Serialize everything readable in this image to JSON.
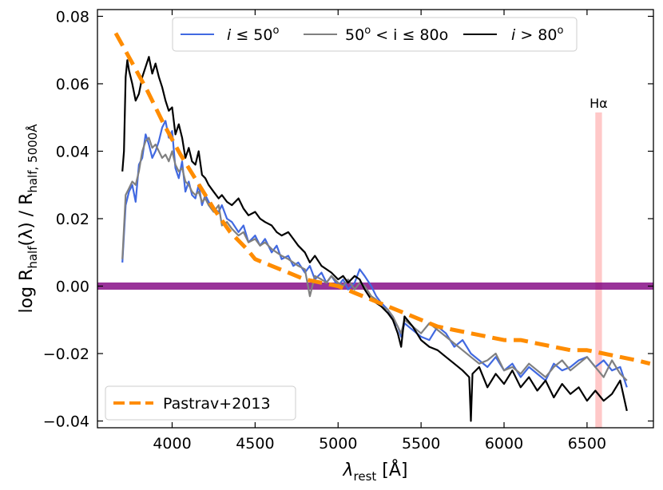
{
  "chart_data": {
    "type": "line",
    "xlabel_symbol": "λ",
    "xlabel_sub": "rest",
    "xlabel_unit": " [Å]",
    "ylabel_prefix": "log  R",
    "ylabel_sub1": "half",
    "ylabel_mid": "(λ) / R",
    "ylabel_sub2": "half, 5000Å",
    "xlim": [
      3550,
      6900
    ],
    "ylim": [
      -0.042,
      0.082
    ],
    "xticks": [
      4000,
      4500,
      5000,
      5500,
      6000,
      6500
    ],
    "xtick_labels": [
      "4000",
      "4500",
      "5000",
      "5500",
      "6000",
      "6500"
    ],
    "yticks": [
      -0.04,
      -0.02,
      0.0,
      0.02,
      0.04,
      0.06,
      0.08
    ],
    "ytick_labels": [
      "−0.04",
      "−0.02",
      "0.00",
      "0.02",
      "0.04",
      "0.06",
      "0.08"
    ],
    "legend_top": [
      {
        "series": "low_inclination",
        "prefix": "i",
        "rel": " ≤ 50",
        "suffix": "o"
      },
      {
        "series": "mid_inclination",
        "prefix": "50",
        "rel": "o",
        "suffix": " < i ≤ 80o"
      },
      {
        "series": "high_inclination",
        "prefix": "i",
        "rel": " > 80",
        "suffix": "o"
      }
    ],
    "legend_bottom_label": "Pastrav+2013",
    "halpha_label": "Hα",
    "halpha_band": [
      6550,
      6590
    ],
    "zero_line": 0.0,
    "colors": {
      "low": "#4169e1",
      "mid": "#808080",
      "high": "#000000",
      "model": "#ff8c00",
      "zero": "#800080",
      "halpha": "#ffb6b6"
    },
    "series": [
      {
        "name": "i ≤ 50o",
        "key": "low",
        "x": [
          3700,
          3720,
          3740,
          3760,
          3780,
          3800,
          3820,
          3840,
          3860,
          3880,
          3900,
          3920,
          3940,
          3960,
          3980,
          4000,
          4020,
          4040,
          4060,
          4080,
          4100,
          4120,
          4140,
          4160,
          4180,
          4200,
          4220,
          4250,
          4280,
          4300,
          4330,
          4360,
          4400,
          4430,
          4460,
          4500,
          4530,
          4560,
          4600,
          4630,
          4660,
          4700,
          4730,
          4760,
          4800,
          4830,
          4860,
          4900,
          4930,
          4960,
          5000,
          5030,
          5060,
          5100,
          5130,
          5160,
          5200,
          5230,
          5260,
          5300,
          5330,
          5360,
          5380,
          5400,
          5450,
          5500,
          5550,
          5600,
          5650,
          5700,
          5750,
          5800,
          5850,
          5900,
          5950,
          6000,
          6050,
          6100,
          6150,
          6200,
          6250,
          6300,
          6350,
          6400,
          6450,
          6500,
          6550,
          6600,
          6650,
          6700,
          6740
        ],
        "y": [
          0.007,
          0.024,
          0.028,
          0.03,
          0.025,
          0.036,
          0.038,
          0.045,
          0.042,
          0.038,
          0.04,
          0.043,
          0.047,
          0.049,
          0.044,
          0.046,
          0.035,
          0.032,
          0.037,
          0.028,
          0.031,
          0.027,
          0.026,
          0.03,
          0.024,
          0.027,
          0.025,
          0.023,
          0.022,
          0.024,
          0.02,
          0.019,
          0.016,
          0.018,
          0.013,
          0.015,
          0.012,
          0.014,
          0.01,
          0.012,
          0.008,
          0.009,
          0.006,
          0.007,
          0.004,
          0.006,
          0.002,
          0.004,
          0.001,
          0.003,
          0.0,
          0.002,
          -0.001,
          0.001,
          0.005,
          0.003,
          0.0,
          -0.003,
          -0.005,
          -0.007,
          -0.01,
          -0.012,
          -0.015,
          -0.011,
          -0.013,
          -0.015,
          -0.016,
          -0.012,
          -0.014,
          -0.018,
          -0.016,
          -0.02,
          -0.022,
          -0.024,
          -0.021,
          -0.025,
          -0.023,
          -0.027,
          -0.024,
          -0.026,
          -0.028,
          -0.023,
          -0.025,
          -0.024,
          -0.022,
          -0.021,
          -0.024,
          -0.022,
          -0.025,
          -0.024,
          -0.03
        ]
      },
      {
        "name": "50o < i ≤ 80o",
        "key": "mid",
        "x": [
          3700,
          3720,
          3740,
          3760,
          3780,
          3800,
          3820,
          3840,
          3860,
          3880,
          3900,
          3920,
          3940,
          3960,
          3980,
          4000,
          4020,
          4040,
          4060,
          4080,
          4100,
          4120,
          4140,
          4160,
          4180,
          4200,
          4220,
          4250,
          4280,
          4300,
          4330,
          4360,
          4400,
          4430,
          4460,
          4500,
          4530,
          4560,
          4600,
          4630,
          4660,
          4700,
          4730,
          4760,
          4800,
          4830,
          4860,
          4900,
          4930,
          4960,
          5000,
          5030,
          5060,
          5100,
          5130,
          5160,
          5200,
          5230,
          5260,
          5300,
          5330,
          5360,
          5380,
          5400,
          5450,
          5500,
          5550,
          5600,
          5650,
          5700,
          5750,
          5800,
          5850,
          5900,
          5950,
          6000,
          6050,
          6100,
          6150,
          6200,
          6250,
          6300,
          6350,
          6400,
          6450,
          6500,
          6550,
          6600,
          6650,
          6700,
          6740
        ],
        "y": [
          0.008,
          0.027,
          0.029,
          0.031,
          0.03,
          0.034,
          0.04,
          0.043,
          0.044,
          0.041,
          0.042,
          0.04,
          0.038,
          0.039,
          0.037,
          0.04,
          0.036,
          0.034,
          0.035,
          0.031,
          0.03,
          0.028,
          0.027,
          0.028,
          0.025,
          0.026,
          0.024,
          0.022,
          0.024,
          0.018,
          0.019,
          0.017,
          0.015,
          0.016,
          0.013,
          0.014,
          0.012,
          0.013,
          0.011,
          0.01,
          0.009,
          0.008,
          0.007,
          0.006,
          0.005,
          -0.003,
          0.003,
          0.002,
          0.001,
          0.003,
          0.001,
          0.0,
          0.002,
          -0.001,
          0.001,
          0.0,
          -0.003,
          -0.004,
          -0.006,
          -0.007,
          -0.009,
          -0.012,
          -0.014,
          -0.01,
          -0.012,
          -0.014,
          -0.011,
          -0.013,
          -0.015,
          -0.017,
          -0.019,
          -0.021,
          -0.023,
          -0.022,
          -0.02,
          -0.025,
          -0.024,
          -0.026,
          -0.023,
          -0.025,
          -0.027,
          -0.024,
          -0.022,
          -0.025,
          -0.023,
          -0.021,
          -0.024,
          -0.027,
          -0.022,
          -0.026,
          -0.028
        ]
      },
      {
        "name": "i > 80o",
        "key": "high",
        "x": [
          3700,
          3710,
          3720,
          3730,
          3740,
          3760,
          3780,
          3800,
          3820,
          3840,
          3860,
          3880,
          3900,
          3920,
          3940,
          3960,
          3980,
          4000,
          4020,
          4040,
          4060,
          4080,
          4100,
          4120,
          4140,
          4160,
          4180,
          4200,
          4220,
          4250,
          4280,
          4300,
          4330,
          4360,
          4400,
          4430,
          4460,
          4500,
          4530,
          4560,
          4600,
          4630,
          4660,
          4700,
          4730,
          4760,
          4800,
          4830,
          4860,
          4900,
          4930,
          4960,
          5000,
          5030,
          5060,
          5100,
          5130,
          5160,
          5200,
          5230,
          5260,
          5300,
          5330,
          5360,
          5380,
          5400,
          5450,
          5500,
          5550,
          5600,
          5650,
          5700,
          5750,
          5790,
          5800,
          5810,
          5850,
          5900,
          5950,
          6000,
          6050,
          6100,
          6150,
          6200,
          6250,
          6300,
          6350,
          6400,
          6450,
          6500,
          6550,
          6600,
          6650,
          6700,
          6740
        ],
        "y": [
          0.034,
          0.04,
          0.062,
          0.067,
          0.064,
          0.06,
          0.055,
          0.057,
          0.062,
          0.065,
          0.068,
          0.063,
          0.066,
          0.062,
          0.059,
          0.055,
          0.052,
          0.053,
          0.045,
          0.048,
          0.044,
          0.038,
          0.041,
          0.037,
          0.036,
          0.04,
          0.033,
          0.032,
          0.03,
          0.028,
          0.026,
          0.027,
          0.025,
          0.024,
          0.026,
          0.023,
          0.021,
          0.022,
          0.02,
          0.019,
          0.018,
          0.016,
          0.015,
          0.016,
          0.014,
          0.012,
          0.01,
          0.007,
          0.009,
          0.006,
          0.005,
          0.004,
          0.002,
          0.003,
          0.001,
          0.003,
          0.002,
          -0.001,
          -0.004,
          -0.005,
          -0.006,
          -0.008,
          -0.01,
          -0.014,
          -0.018,
          -0.009,
          -0.012,
          -0.016,
          -0.018,
          -0.019,
          -0.021,
          -0.023,
          -0.025,
          -0.027,
          -0.04,
          -0.026,
          -0.024,
          -0.03,
          -0.026,
          -0.029,
          -0.025,
          -0.03,
          -0.027,
          -0.031,
          -0.028,
          -0.033,
          -0.029,
          -0.032,
          -0.03,
          -0.034,
          -0.031,
          -0.034,
          -0.032,
          -0.028,
          -0.037
        ]
      },
      {
        "name": "Pastrav+2013",
        "key": "model",
        "dashed": true,
        "x": [
          3660,
          3750,
          3850,
          3950,
          4050,
          4150,
          4250,
          4350,
          4450,
          4500,
          4600,
          4700,
          4800,
          4900,
          5000,
          5100,
          5200,
          5300,
          5400,
          5500,
          5600,
          5700,
          5800,
          5900,
          6000,
          6100,
          6200,
          6300,
          6400,
          6500,
          6600,
          6700,
          6800,
          6880
        ],
        "y": [
          0.075,
          0.067,
          0.058,
          0.048,
          0.039,
          0.031,
          0.023,
          0.016,
          0.011,
          0.008,
          0.006,
          0.004,
          0.002,
          0.001,
          0.0,
          -0.002,
          -0.004,
          -0.006,
          -0.008,
          -0.01,
          -0.012,
          -0.013,
          -0.014,
          -0.015,
          -0.016,
          -0.016,
          -0.017,
          -0.018,
          -0.019,
          -0.019,
          -0.02,
          -0.021,
          -0.022,
          -0.023
        ]
      }
    ]
  }
}
